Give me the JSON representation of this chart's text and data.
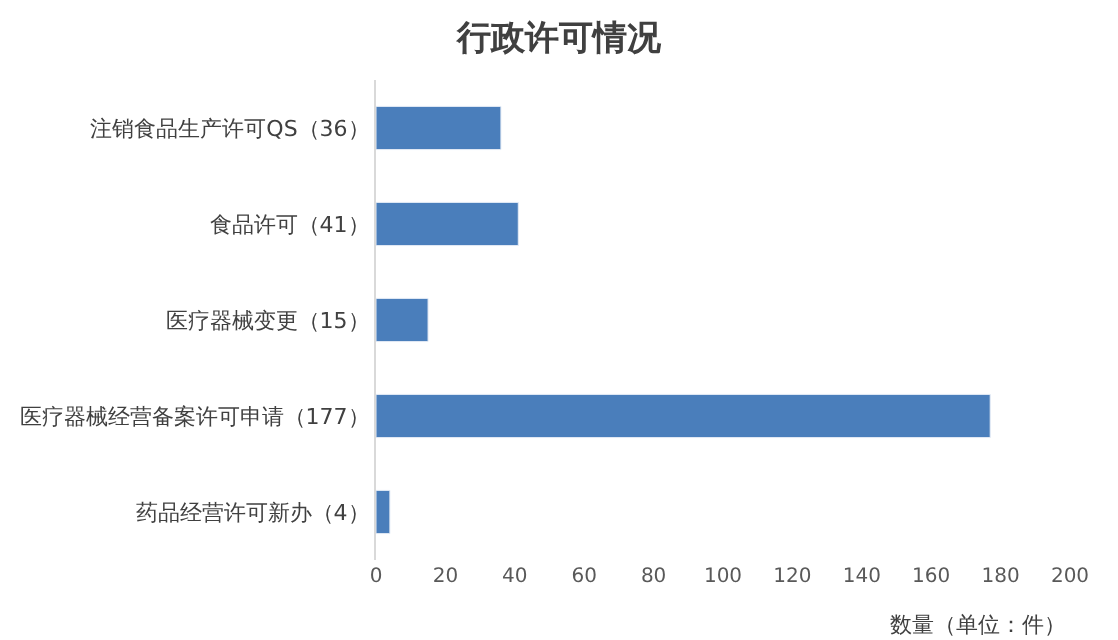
{
  "chart_data": {
    "type": "bar",
    "orientation": "horizontal",
    "title": "行政许可情况",
    "xlabel": "数量（单位：件）",
    "categories": [
      "注销食品生产许可QS（36）",
      "食品许可（41）",
      "医疗器械变更（15）",
      "医疗器械经营备案许可申请（177）",
      "药品经营许可新办（4）"
    ],
    "values": [
      36,
      41,
      15,
      177,
      4
    ],
    "color": "#4a7ebb",
    "xlim": [
      0,
      200
    ],
    "xticks": [
      0,
      20,
      40,
      60,
      80,
      100,
      120,
      140,
      160,
      180,
      200
    ],
    "legend": false
  }
}
